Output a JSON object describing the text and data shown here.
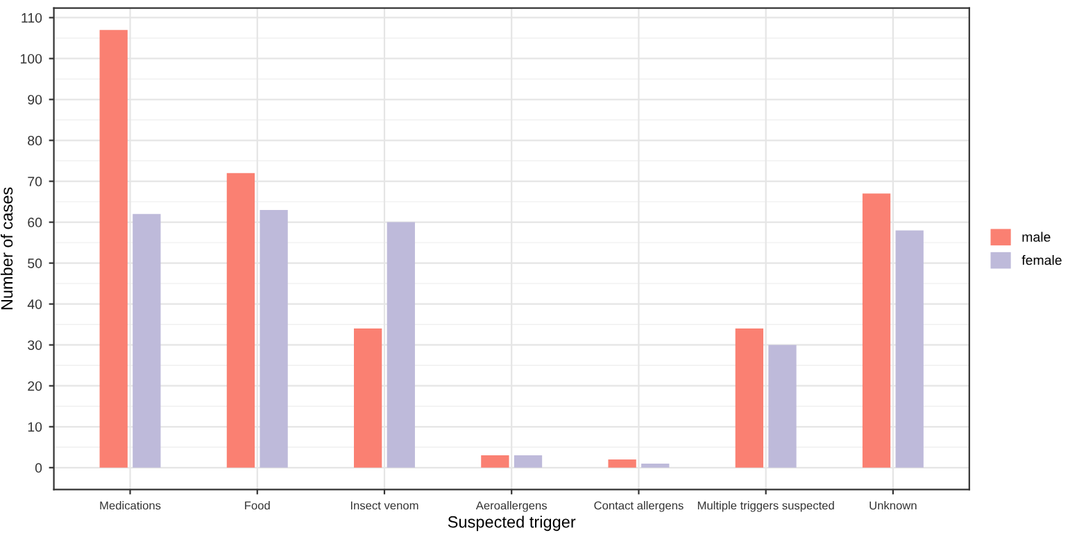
{
  "chart_data": {
    "type": "bar",
    "xlabel": "Suspected trigger",
    "ylabel": "Number of cases",
    "categories": [
      "Medications",
      "Food",
      "Insect venom",
      "Aeroallergens",
      "Contact allergens",
      "Multiple triggers suspected",
      "Unknown"
    ],
    "series": [
      {
        "name": "male",
        "color": "#fa8072",
        "values": [
          107,
          72,
          34,
          3,
          2,
          34,
          67
        ]
      },
      {
        "name": "female",
        "color": "#bebada",
        "values": [
          62,
          63,
          60,
          3,
          1,
          30,
          58
        ]
      }
    ],
    "ylim": [
      -5.35,
      112.35
    ],
    "yticks": [
      0,
      10,
      20,
      30,
      40,
      50,
      60,
      70,
      80,
      90,
      100,
      110
    ],
    "grid": true,
    "legend": "right"
  }
}
